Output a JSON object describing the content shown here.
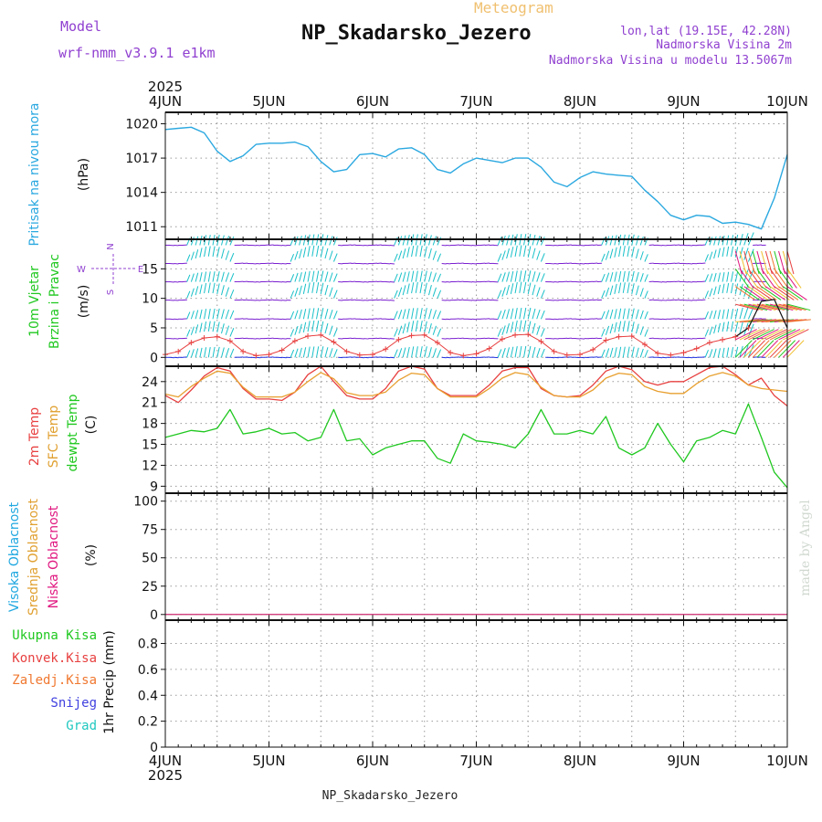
{
  "header": {
    "model_label": "Model",
    "model_name": "wrf-nmm_v3.9.1 e1km",
    "product": "Meteogram",
    "station": "NP_Skadarsko_Jezero",
    "lonlat": "lon,lat (19.15E, 42.28N)",
    "elevation": "Nadmorska Visina 2m",
    "model_elevation": "Nadmorska Visina u modelu 13.5067m",
    "footer_station": "NP_Skadarsko_Jezero",
    "credit": "made by Angel"
  },
  "colors": {
    "pressure": "#2aa8e0",
    "t2m": "#e84040",
    "sfc": "#e8a030",
    "dewpoint": "#20c820",
    "wind_violet": "#7a1fd0",
    "wind_cyan": "#18c0c8",
    "wind_blue": "#2030e0",
    "high_cloud": "#20a8e0",
    "mid_cloud": "#e0a030",
    "low_cloud": "#e01880",
    "precip_total": "#20c820",
    "precip_conv": "#e84040",
    "precip_frz": "#f07830",
    "precip_snow": "#4040e0",
    "precip_grad": "#20c8c0",
    "title_purple": "#9040d0",
    "title_orange": "#f0c070"
  },
  "time_axis": {
    "year": "2025",
    "days": [
      "4JUN",
      "5JUN",
      "6JUN",
      "7JUN",
      "8JUN",
      "9JUN",
      "10JUN"
    ]
  },
  "compass": {
    "n": "N",
    "w": "W",
    "e": "E",
    "s": "S"
  },
  "chart_data": [
    {
      "type": "line",
      "name": "pressure",
      "ylabel_main": "Pritisak na nivou mora",
      "ylabel_unit": "(hPa)",
      "yticks": [
        1011,
        1014,
        1017,
        1020
      ],
      "ylim": [
        1009.9,
        1021.0
      ],
      "grid": true,
      "series": [
        {
          "name": "Pritisak na nivou mora",
          "x": [
            0,
            3,
            6,
            9,
            12,
            15,
            18,
            21,
            24,
            27,
            30,
            33,
            36,
            39,
            42,
            45,
            48,
            51,
            54,
            57,
            60,
            63,
            66,
            69,
            72,
            75,
            78,
            81,
            84,
            87,
            90,
            93,
            96,
            99,
            102,
            105,
            108,
            111,
            114,
            117,
            120,
            123,
            126,
            129,
            132,
            135,
            138,
            141,
            144
          ],
          "values": [
            1019.5,
            1019.6,
            1019.7,
            1019.2,
            1017.6,
            1016.7,
            1017.2,
            1018.2,
            1018.3,
            1018.3,
            1018.4,
            1018.0,
            1016.7,
            1015.8,
            1016.0,
            1017.3,
            1017.4,
            1017.1,
            1017.8,
            1017.9,
            1017.3,
            1016.0,
            1015.7,
            1016.5,
            1017.0,
            1016.8,
            1016.6,
            1017.0,
            1017.0,
            1016.2,
            1014.9,
            1014.5,
            1015.3,
            1015.8,
            1015.6,
            1015.5,
            1015.4,
            1014.2,
            1013.2,
            1012.0,
            1011.6,
            1012.0,
            1011.9,
            1011.3,
            1011.4,
            1011.2,
            1010.8,
            1013.5,
            1017.3
          ]
        }
      ]
    },
    {
      "type": "line",
      "name": "wind",
      "ylabel_main": "10m Vjetar",
      "ylabel_main2": "Brzina i Pravac",
      "ylabel_unit": "(m/s)",
      "yticks": [
        0,
        5,
        10,
        15
      ],
      "ylim": [
        -1.5,
        20.0
      ],
      "grid": true,
      "series": [
        {
          "name": "10m Vjetar",
          "x": [
            0,
            3,
            6,
            9,
            12,
            15,
            18,
            21,
            24,
            27,
            30,
            33,
            36,
            39,
            42,
            45,
            48,
            51,
            54,
            57,
            60,
            63,
            66,
            69,
            72,
            75,
            78,
            81,
            84,
            87,
            90,
            93,
            96,
            99,
            102,
            105,
            108,
            111,
            114,
            117,
            120,
            123,
            126,
            129,
            132,
            135,
            138,
            141,
            144
          ],
          "values": [
            0.5,
            1.0,
            2.5,
            3.3,
            3.5,
            2.8,
            1.0,
            0.3,
            0.5,
            1.2,
            2.8,
            3.6,
            3.8,
            2.6,
            1.0,
            0.4,
            0.5,
            1.4,
            3.0,
            3.7,
            3.8,
            2.5,
            0.8,
            0.3,
            0.6,
            1.5,
            3.1,
            3.8,
            3.9,
            2.7,
            1.0,
            0.4,
            0.5,
            1.3,
            2.9,
            3.5,
            3.6,
            2.2,
            0.7,
            0.4,
            0.8,
            1.5,
            2.5,
            3.0,
            3.5,
            5.0,
            9.5,
            9.8,
            5.0
          ]
        }
      ]
    },
    {
      "type": "line",
      "name": "temperature",
      "ylabel_2m": "2m Temp",
      "ylabel_sfc": "SFC Temp",
      "ylabel_dew": "dewpt Temp",
      "ylabel_unit": "(C)",
      "yticks": [
        9,
        12,
        15,
        18,
        21,
        24
      ],
      "ylim": [
        8.0,
        26.2
      ],
      "grid": true,
      "x": [
        0,
        3,
        6,
        9,
        12,
        15,
        18,
        21,
        24,
        27,
        30,
        33,
        36,
        39,
        42,
        45,
        48,
        51,
        54,
        57,
        60,
        63,
        66,
        69,
        72,
        75,
        78,
        81,
        84,
        87,
        90,
        93,
        96,
        99,
        102,
        105,
        108,
        111,
        114,
        117,
        120,
        123,
        126,
        129,
        132,
        135,
        138,
        141,
        144
      ],
      "series": [
        {
          "name": "2m Temp",
          "values": [
            22.0,
            21.0,
            22.8,
            24.8,
            26.0,
            25.5,
            23.0,
            21.5,
            21.5,
            21.3,
            22.5,
            25.0,
            26.2,
            24.0,
            22.0,
            21.5,
            21.5,
            23.0,
            25.5,
            26.2,
            25.8,
            23.0,
            22.0,
            22.0,
            22.0,
            23.5,
            25.5,
            26.0,
            26.0,
            23.0,
            22.0,
            21.8,
            22.0,
            23.5,
            25.5,
            26.2,
            25.7,
            24.0,
            23.5,
            24.0,
            24.0,
            25.0,
            26.0,
            26.2,
            25.0,
            23.5,
            24.5,
            22.0,
            20.5
          ]
        },
        {
          "name": "SFC Temp",
          "values": [
            22.2,
            21.8,
            23.3,
            24.5,
            25.5,
            25.2,
            23.2,
            21.8,
            21.8,
            21.8,
            22.5,
            24.0,
            25.3,
            24.4,
            22.4,
            22.0,
            22.0,
            22.5,
            24.2,
            25.2,
            25.0,
            23.0,
            21.8,
            21.8,
            21.8,
            23.0,
            24.5,
            25.3,
            25.0,
            23.2,
            22.0,
            21.8,
            21.8,
            22.8,
            24.5,
            25.2,
            25.0,
            23.3,
            22.6,
            22.3,
            22.3,
            23.7,
            24.8,
            25.3,
            24.8,
            23.5,
            23.0,
            22.8,
            22.6
          ]
        },
        {
          "name": "dewpt Temp",
          "values": [
            16.0,
            16.5,
            17.0,
            16.8,
            17.3,
            20.0,
            16.5,
            16.8,
            17.3,
            16.5,
            16.7,
            15.5,
            16.0,
            20.0,
            15.5,
            15.8,
            13.5,
            14.5,
            15.0,
            15.5,
            15.5,
            13.0,
            12.3,
            16.5,
            15.5,
            15.3,
            15.0,
            14.5,
            16.5,
            20.0,
            16.5,
            16.5,
            17.0,
            16.5,
            19.0,
            14.5,
            13.5,
            14.5,
            18.0,
            15.0,
            12.5,
            15.5,
            16.0,
            17.0,
            16.5,
            20.8,
            16.0,
            11.0,
            8.8
          ]
        }
      ]
    },
    {
      "type": "line",
      "name": "cloud",
      "ylabel_high": "Visoka Oblacnost",
      "ylabel_mid": "Srednja Oblacnost",
      "ylabel_low": "Niska Oblacnost",
      "ylabel_unit": "(%)",
      "yticks": [
        0,
        25,
        50,
        75,
        100
      ],
      "ylim": [
        -5,
        107
      ],
      "grid": true,
      "x": [
        0,
        144
      ],
      "series": [
        {
          "name": "Visoka Oblacnost",
          "values": [
            0,
            0
          ]
        },
        {
          "name": "Srednja Oblacnost",
          "values": [
            0,
            0
          ]
        },
        {
          "name": "Niska Oblacnost",
          "values": [
            0,
            0
          ]
        }
      ]
    },
    {
      "type": "bar",
      "name": "precip",
      "ylabel_unit": "1hr Precip (mm)",
      "legend": [
        "Ukupna Kisa",
        "Konvek.Kisa",
        "Zaledj.Kisa",
        "Snijeg",
        "Grad"
      ],
      "yticks": [
        0,
        0.2,
        0.4,
        0.6,
        0.8
      ],
      "ylim": [
        0,
        0.98
      ],
      "grid": true,
      "x": [
        0,
        144
      ],
      "values": [
        0,
        0
      ]
    }
  ]
}
